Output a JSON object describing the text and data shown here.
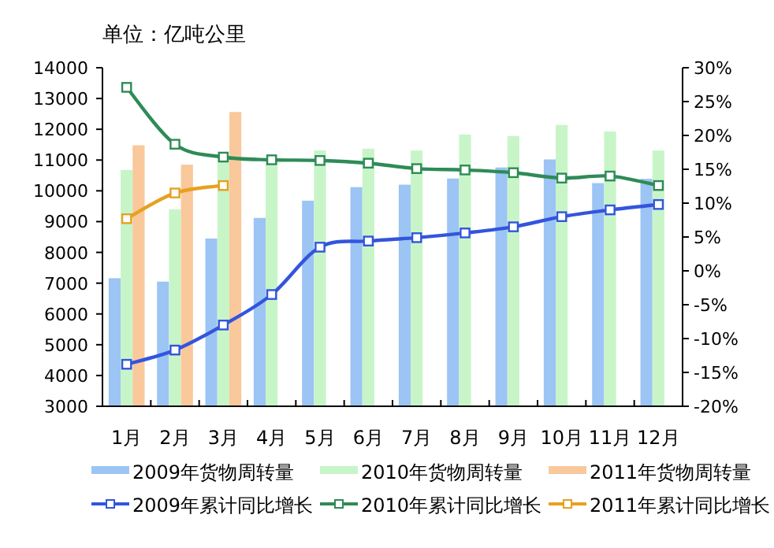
{
  "chart_data": {
    "type": "bar",
    "title": "单位：亿吨公里",
    "categories": [
      "1月",
      "2月",
      "3月",
      "4月",
      "5月",
      "6月",
      "7月",
      "8月",
      "9月",
      "10月",
      "11月",
      "12月"
    ],
    "series": [
      {
        "name": "2009年货物周转量",
        "color": "#9cc4f4",
        "values": [
          7160,
          7050,
          8450,
          9120,
          9680,
          10120,
          10200,
          10400,
          10760,
          11020,
          10250,
          10390
        ]
      },
      {
        "name": "2010年货物周转量",
        "color": "#c8f5c8",
        "values": [
          10680,
          9400,
          11110,
          10950,
          11310,
          11370,
          11310,
          11830,
          11780,
          12140,
          11930,
          11310
        ]
      },
      {
        "name": "2011年货物周转量",
        "color": "#f9c89b",
        "values": [
          11480,
          10850,
          12560,
          null,
          null,
          null,
          null,
          null,
          null,
          null,
          null,
          null
        ]
      },
      {
        "name": "2009年累计同比增长",
        "type": "line",
        "axis": "y2",
        "color": "#3355dd",
        "values": [
          -13.8,
          -11.7,
          -8.0,
          -3.5,
          3.5,
          4.4,
          4.9,
          5.6,
          6.5,
          8.0,
          9.0,
          9.8
        ]
      },
      {
        "name": "2010年累计同比增长",
        "type": "line",
        "axis": "y2",
        "color": "#2e8b57",
        "values": [
          27.1,
          18.7,
          16.8,
          16.4,
          16.3,
          15.9,
          15.1,
          14.9,
          14.5,
          13.7,
          14.0,
          12.6
        ]
      },
      {
        "name": "2011年累计同比增长",
        "type": "line",
        "axis": "y2",
        "color": "#e8a020",
        "values": [
          7.7,
          11.5,
          12.6,
          null,
          null,
          null,
          null,
          null,
          null,
          null,
          null,
          null
        ]
      }
    ],
    "ylim": [
      3000,
      14000
    ],
    "yticks": [
      3000,
      4000,
      5000,
      6000,
      7000,
      8000,
      9000,
      10000,
      11000,
      12000,
      13000,
      14000
    ],
    "y2lim": [
      -20,
      30
    ],
    "y2ticks": [
      {
        "value": -20,
        "label": "-20%"
      },
      {
        "value": -15,
        "label": "-15%"
      },
      {
        "value": -10,
        "label": "-10%"
      },
      {
        "value": -5,
        "label": "-5%"
      },
      {
        "value": 0,
        "label": "0%"
      },
      {
        "value": 5,
        "label": "5%"
      },
      {
        "value": 10,
        "label": "10%"
      },
      {
        "value": 15,
        "label": "15%"
      },
      {
        "value": 20,
        "label": "20%"
      },
      {
        "value": 25,
        "label": "25%"
      },
      {
        "value": 30,
        "label": "30%"
      }
    ],
    "grid": false,
    "legend": "bottom",
    "marker": "square",
    "line_style": "solid"
  }
}
